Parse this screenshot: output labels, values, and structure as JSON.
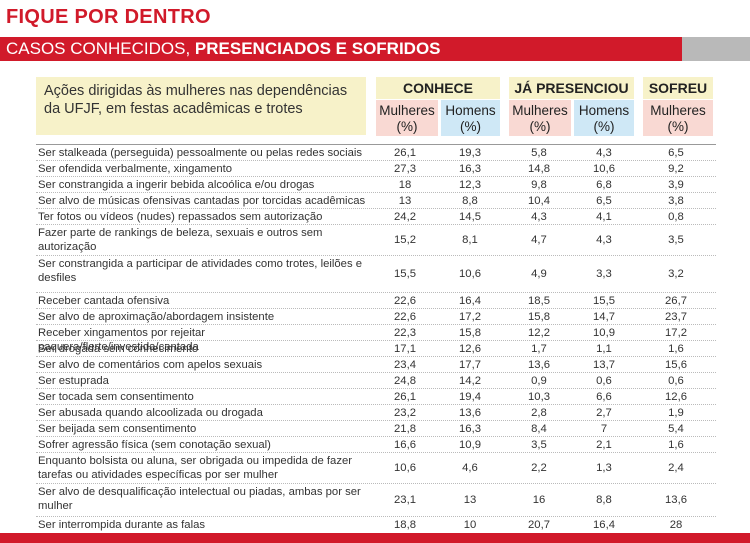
{
  "kicker": "FIQUE POR DENTRO",
  "banner": {
    "part1": "CASOS CONHECIDOS, ",
    "part2": "PRESENCIADOS E SOFRIDOS"
  },
  "header": {
    "main": "Ações dirigidas às mulheres nas dependências da UFJF, em festas acadêmicas e trotes",
    "groups": [
      "CONHECE",
      "JÁ PRESENCIOU",
      "SOFREU"
    ],
    "mulheres": "Mulheres",
    "homens": "Homens",
    "unit": "(%)"
  },
  "rows": [
    {
      "label": "Ser stalkeada (perseguida) pessoalmente ou pelas redes sociais",
      "v": [
        "26,1",
        "19,3",
        "5,8",
        "4,3",
        "6,5"
      ]
    },
    {
      "label": "Ser ofendida verbalmente, xingamento",
      "v": [
        "27,3",
        "16,3",
        "14,8",
        "10,6",
        "9,2"
      ]
    },
    {
      "label": "Ser constrangida a ingerir bebida alcoólica e/ou drogas",
      "v": [
        "18",
        "12,3",
        "9,8",
        "6,8",
        "3,9"
      ]
    },
    {
      "label": "Ser alvo de músicas ofensivas cantadas por torcidas acadêmicas",
      "v": [
        "13",
        "8,8",
        "10,4",
        "6,5",
        "3,8"
      ]
    },
    {
      "label": "Ter fotos ou vídeos (nudes) repassados sem autorização",
      "v": [
        "24,2",
        "14,5",
        "4,3",
        "4,1",
        "0,8"
      ]
    },
    {
      "label": "Fazer parte de rankings de beleza, sexuais e outros sem autorização",
      "v": [
        "15,2",
        "8,1",
        "4,7",
        "4,3",
        "3,5"
      ]
    },
    {
      "label": "Ser constrangida a participar de atividades como trotes, leilões e desfiles",
      "v": [
        "15,5",
        "10,6",
        "4,9",
        "3,3",
        "3,2"
      ]
    },
    {
      "label": "Receber cantada ofensiva",
      "v": [
        "22,6",
        "16,4",
        "18,5",
        "15,5",
        "26,7"
      ]
    },
    {
      "label": "Ser alvo de aproximação/abordagem insistente",
      "v": [
        "22,6",
        "17,2",
        "15,8",
        "14,7",
        "23,7"
      ]
    },
    {
      "label": "Receber xingamentos por rejeitar paquera/flerte/investida/cantada",
      "v": [
        "22,3",
        "15,8",
        "12,2",
        "10,9",
        "17,2"
      ]
    },
    {
      "label": "Ser drogada sem conhecimento",
      "v": [
        "17,1",
        "12,6",
        "1,7",
        "1,1",
        "1,6"
      ]
    },
    {
      "label": "Ser alvo de comentários com apelos sexuais",
      "v": [
        "23,4",
        "17,7",
        "13,6",
        "13,7",
        "15,6"
      ]
    },
    {
      "label": "Ser estuprada",
      "v": [
        "24,8",
        "14,2",
        "0,9",
        "0,6",
        "0,6"
      ]
    },
    {
      "label": "Ser tocada sem consentimento",
      "v": [
        "26,1",
        "19,4",
        "10,3",
        "6,6",
        "12,6"
      ]
    },
    {
      "label": "Ser abusada quando alcoolizada ou drogada",
      "v": [
        "23,2",
        "13,6",
        "2,8",
        "2,7",
        "1,9"
      ]
    },
    {
      "label": "Ser beijada sem consentimento",
      "v": [
        "21,8",
        "16,3",
        "8,4",
        "7",
        "5,4"
      ]
    },
    {
      "label": "Sofrer agressão física (sem conotação sexual)",
      "v": [
        "16,6",
        "10,9",
        "3,5",
        "2,1",
        "1,6"
      ]
    },
    {
      "label": "Enquanto bolsista ou aluna, ser obrigada ou impedida de fazer tarefas ou atividades específicas por ser mulher",
      "v": [
        "10,6",
        "4,6",
        "2,2",
        "1,3",
        "2,4"
      ]
    },
    {
      "label": "Ser alvo de desqualificação intelectual ou piadas, ambas por ser mulher",
      "v": [
        "23,1",
        "13",
        "16",
        "8,8",
        "13,6"
      ]
    },
    {
      "label": "Ser interrompida durante as falas",
      "v": [
        "18,8",
        "10",
        "20,7",
        "16,4",
        "28"
      ]
    }
  ]
}
